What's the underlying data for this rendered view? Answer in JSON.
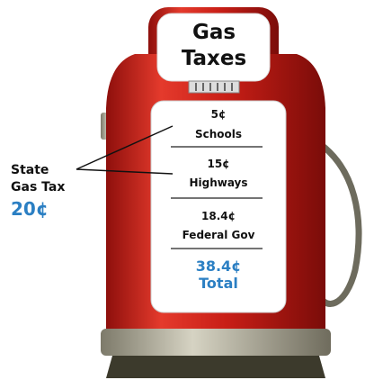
{
  "title": "Gas Taxes",
  "items": [
    {
      "amount": "5¢",
      "label": "Schools"
    },
    {
      "amount": "15¢",
      "label": "Highways"
    },
    {
      "amount": "18.4¢",
      "label": "Federal Gov"
    }
  ],
  "total": {
    "amount": "38.4¢",
    "label": "Total"
  },
  "state": {
    "label": "State Gas Tax",
    "amount": "20¢"
  }
}
